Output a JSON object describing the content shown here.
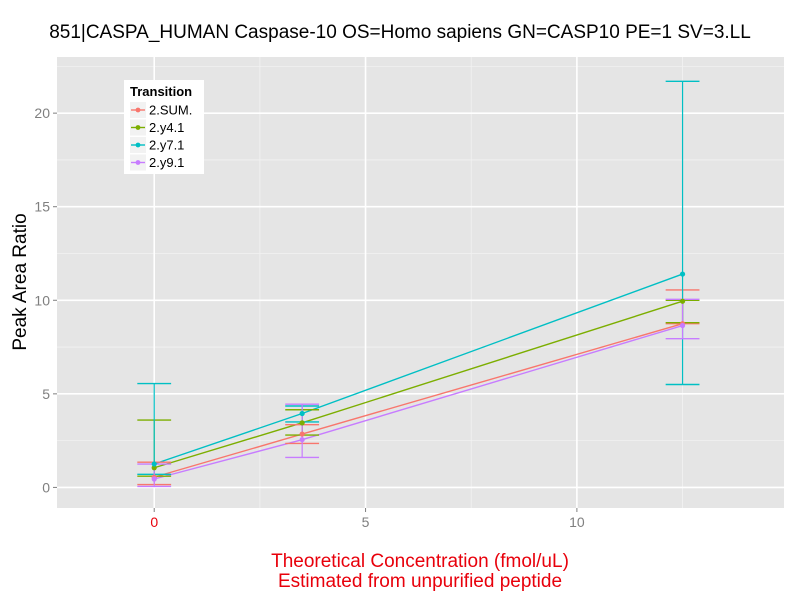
{
  "chart_data": {
    "type": "line",
    "title": "851|CASPA_HUMAN Caspase-10 OS=Homo sapiens GN=CASP10 PE=1 SV=3.LL",
    "xlabel": [
      "Theoretical Concentration (fmol/uL)",
      "Estimated from unpurified peptide"
    ],
    "ylabel": "Peak Area Ratio",
    "xlim": [
      -2.3,
      14.9
    ],
    "ylim": [
      -1.1,
      23.0
    ],
    "xticks": [
      0,
      5,
      10
    ],
    "yticks": [
      0,
      5,
      10,
      15,
      20
    ],
    "grid": true,
    "legend": {
      "title": "Transition",
      "position": "top-left"
    },
    "series": [
      {
        "name": "2.SUM.",
        "color": "#f8766d",
        "points": [
          {
            "x": 0,
            "y": 0.55
          },
          {
            "x": 3.5,
            "y": 2.85
          },
          {
            "x": 12.5,
            "y": 8.75
          }
        ],
        "errorbars": [
          {
            "x": 0,
            "ymin": 0.15,
            "ymax": 1.35
          },
          {
            "x": 3.5,
            "ymin": 2.35,
            "ymax": 3.35
          },
          {
            "x": 12.5,
            "ymin": 8.75,
            "ymax": 10.55
          }
        ]
      },
      {
        "name": "2.y4.1",
        "color": "#7cae00",
        "points": [
          {
            "x": 0,
            "y": 1.05
          },
          {
            "x": 3.5,
            "y": 3.45
          },
          {
            "x": 12.5,
            "y": 9.95
          }
        ],
        "errorbars": [
          {
            "x": 0,
            "ymin": 0.6,
            "ymax": 3.6
          },
          {
            "x": 3.5,
            "ymin": 2.8,
            "ymax": 4.15
          },
          {
            "x": 12.5,
            "ymin": 8.8,
            "ymax": 10.0
          }
        ]
      },
      {
        "name": "2.y7.1",
        "color": "#00bfc4",
        "points": [
          {
            "x": 0,
            "y": 1.25
          },
          {
            "x": 3.5,
            "y": 3.95
          },
          {
            "x": 12.5,
            "y": 11.4
          }
        ],
        "errorbars": [
          {
            "x": 0,
            "ymin": 0.7,
            "ymax": 5.55
          },
          {
            "x": 3.5,
            "ymin": 3.5,
            "ymax": 4.35
          },
          {
            "x": 12.5,
            "ymin": 5.5,
            "ymax": 21.7
          }
        ]
      },
      {
        "name": "2.y9.1",
        "color": "#c77cff",
        "points": [
          {
            "x": 0,
            "y": 0.45
          },
          {
            "x": 3.5,
            "y": 2.55
          },
          {
            "x": 12.5,
            "y": 8.65
          }
        ],
        "errorbars": [
          {
            "x": 0,
            "ymin": 0.05,
            "ymax": 1.25
          },
          {
            "x": 3.5,
            "ymin": 1.6,
            "ymax": 4.45
          },
          {
            "x": 12.5,
            "ymin": 7.95,
            "ymax": 10.05
          }
        ]
      }
    ]
  }
}
